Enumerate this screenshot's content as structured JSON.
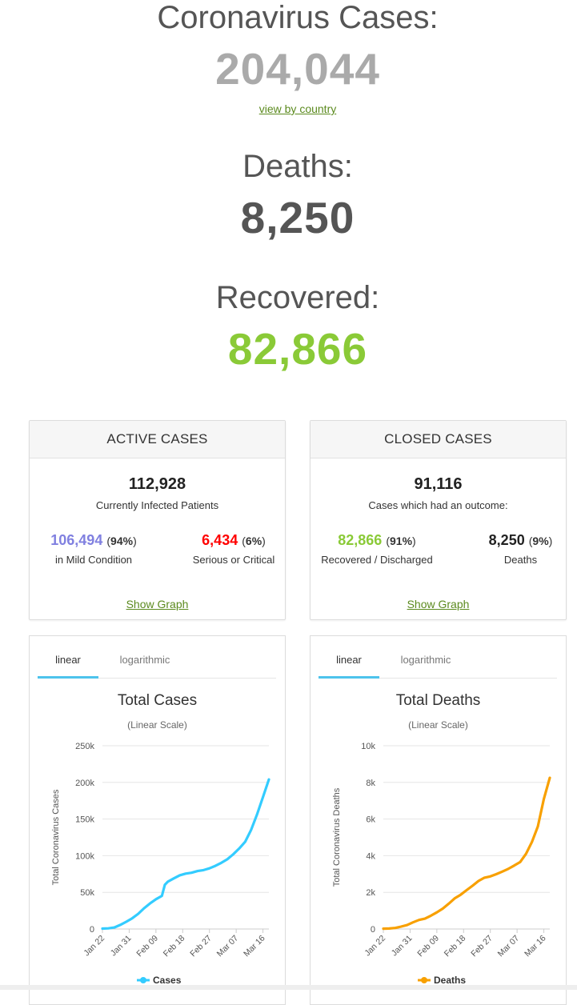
{
  "header": {
    "cases_title": "Coronavirus Cases:",
    "cases_value": "204,044",
    "view_link": "view by country",
    "deaths_title": "Deaths:",
    "deaths_value": "8,250",
    "recovered_title": "Recovered:",
    "recovered_value": "82,866"
  },
  "colors": {
    "cases_num": "#aaaaaa",
    "deaths_num": "#555555",
    "recovered_num": "#8aca37",
    "mild": "#8080e0",
    "critical": "#ff0000",
    "recovered_small": "#8aca37",
    "cases_line": "#33ccff",
    "deaths_line": "#f8a000"
  },
  "active": {
    "title": "ACTIVE CASES",
    "total": "112,928",
    "total_label": "Currently Infected Patients",
    "mild_value": "106,494",
    "mild_pct": "94%",
    "mild_label": "in Mild Condition",
    "critical_value": "6,434",
    "critical_pct": "6%",
    "critical_label": "Serious or Critical",
    "show_graph": "Show Graph"
  },
  "closed": {
    "title": "CLOSED CASES",
    "total": "91,116",
    "total_label": "Cases which had an outcome:",
    "recovered_value": "82,866",
    "recovered_pct": "91%",
    "recovered_label": "Recovered / Discharged",
    "deaths_value": "8,250",
    "deaths_pct": "9%",
    "deaths_label": "Deaths",
    "show_graph": "Show Graph"
  },
  "chart_data": [
    {
      "type": "line",
      "tabs": [
        "linear",
        "logarithmic"
      ],
      "active_tab": "linear",
      "title": "Total Cases",
      "subtitle": "(Linear Scale)",
      "ylabel": "Total Coronavirus Cases",
      "ylim": [
        0,
        250000
      ],
      "y_ticks": [
        0,
        50000,
        100000,
        150000,
        200000,
        250000
      ],
      "y_tick_labels": [
        "0",
        "50k",
        "100k",
        "150k",
        "200k",
        "250k"
      ],
      "x_ticks": [
        "Jan 22",
        "Jan 31",
        "Feb 09",
        "Feb 18",
        "Feb 27",
        "Mar 07",
        "Mar 16"
      ],
      "legend": "Cases",
      "grid": true,
      "series": [
        {
          "name": "Cases",
          "x": [
            "Jan 22",
            "Jan 24",
            "Jan 26",
            "Jan 28",
            "Jan 30",
            "Feb 01",
            "Feb 03",
            "Feb 05",
            "Feb 07",
            "Feb 09",
            "Feb 11",
            "Feb 12",
            "Feb 13",
            "Feb 15",
            "Feb 17",
            "Feb 19",
            "Feb 21",
            "Feb 23",
            "Feb 25",
            "Feb 27",
            "Feb 29",
            "Mar 02",
            "Mar 04",
            "Mar 06",
            "Mar 08",
            "Mar 10",
            "Mar 12",
            "Mar 14",
            "Mar 16",
            "Mar 18"
          ],
          "values": [
            580,
            900,
            2100,
            5600,
            9800,
            14500,
            20600,
            28300,
            34800,
            40600,
            45200,
            60400,
            64500,
            69000,
            73300,
            75600,
            76800,
            79000,
            80400,
            82800,
            86100,
            90300,
            95100,
            101900,
            109800,
            118900,
            135000,
            156000,
            180000,
            204044
          ]
        }
      ]
    },
    {
      "type": "line",
      "tabs": [
        "linear",
        "logarithmic"
      ],
      "active_tab": "linear",
      "title": "Total Deaths",
      "subtitle": "(Linear Scale)",
      "ylabel": "Total Coronavirus Deaths",
      "ylim": [
        0,
        10000
      ],
      "y_ticks": [
        0,
        2000,
        4000,
        6000,
        8000,
        10000
      ],
      "y_tick_labels": [
        "0",
        "2k",
        "4k",
        "6k",
        "8k",
        "10k"
      ],
      "x_ticks": [
        "Jan 22",
        "Jan 31",
        "Feb 09",
        "Feb 18",
        "Feb 27",
        "Mar 07",
        "Mar 16"
      ],
      "legend": "Deaths",
      "grid": true,
      "series": [
        {
          "name": "Deaths",
          "x": [
            "Jan 22",
            "Jan 24",
            "Jan 26",
            "Jan 28",
            "Jan 30",
            "Feb 01",
            "Feb 03",
            "Feb 05",
            "Feb 07",
            "Feb 09",
            "Feb 11",
            "Feb 13",
            "Feb 15",
            "Feb 17",
            "Feb 19",
            "Feb 21",
            "Feb 23",
            "Feb 25",
            "Feb 27",
            "Feb 29",
            "Mar 02",
            "Mar 04",
            "Mar 06",
            "Mar 08",
            "Mar 10",
            "Mar 12",
            "Mar 14",
            "Mar 16",
            "Mar 18"
          ],
          "values": [
            17,
            26,
            56,
            132,
            213,
            362,
            494,
            565,
            724,
            910,
            1115,
            1380,
            1670,
            1870,
            2120,
            2360,
            2620,
            2800,
            2870,
            2990,
            3130,
            3280,
            3460,
            3650,
            4100,
            4750,
            5600,
            7100,
            8250
          ]
        }
      ]
    }
  ]
}
